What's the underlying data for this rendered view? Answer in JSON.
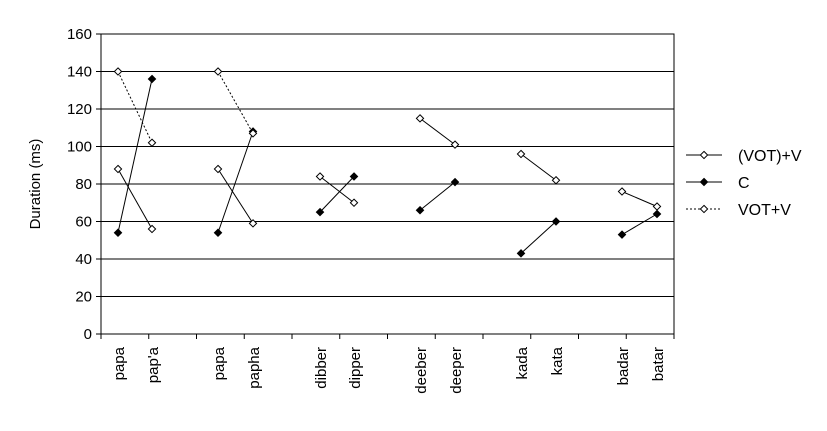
{
  "chart_data": {
    "type": "line",
    "title": "",
    "xlabel": "",
    "ylabel": "Duration (ms)",
    "ylim": [
      0,
      160
    ],
    "yticks": [
      0,
      20,
      40,
      60,
      80,
      100,
      120,
      140,
      160
    ],
    "grid": true,
    "legend_position": "right",
    "categories": [
      "papa",
      "pap'a",
      "papa",
      "papha",
      "dibber",
      "dipper",
      "deeber",
      "deeper",
      "kada",
      "kata",
      "badar",
      "batar"
    ],
    "pairs": [
      [
        0,
        1
      ],
      [
        2,
        3
      ],
      [
        4,
        5
      ],
      [
        6,
        7
      ],
      [
        8,
        9
      ],
      [
        10,
        11
      ]
    ],
    "series": [
      {
        "name": "(VOT)+V",
        "marker": "open-diamond",
        "line": "solid",
        "values": [
          88,
          56,
          88,
          59,
          84,
          70,
          115,
          101,
          96,
          82,
          76,
          68
        ]
      },
      {
        "name": "C",
        "marker": "filled-diamond",
        "line": "solid",
        "values": [
          54,
          136,
          54,
          108,
          65,
          84,
          66,
          81,
          43,
          60,
          53,
          64
        ]
      },
      {
        "name": "VOT+V",
        "marker": "open-diamond",
        "line": "dotted",
        "values": [
          140,
          102,
          140,
          107,
          null,
          null,
          null,
          null,
          null,
          null,
          null,
          null
        ]
      }
    ]
  }
}
